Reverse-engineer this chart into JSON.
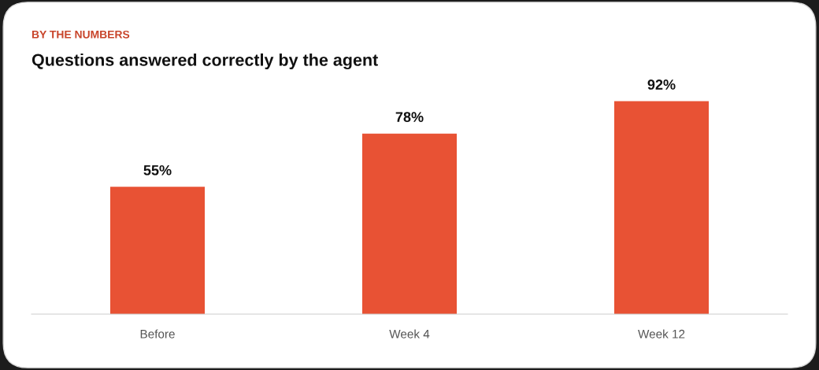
{
  "chart_data": {
    "type": "bar",
    "subtitle": "BY THE NUMBERS",
    "title": "Questions answered correctly by the agent",
    "categories": [
      "Before",
      "Week 4",
      "Week 12"
    ],
    "values": [
      55,
      78,
      92
    ],
    "value_labels": [
      "55%",
      "78%",
      "92%"
    ],
    "color": "#e85234",
    "legend": false
  }
}
